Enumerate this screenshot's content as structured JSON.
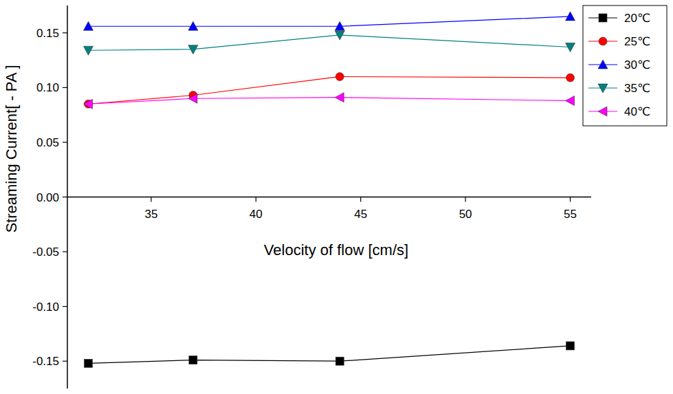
{
  "chart_data": {
    "type": "line",
    "x_label": "Velocity of flow [cm/s]",
    "y_label": "Streaming Current[ - PA ]",
    "x": [
      32,
      37,
      44,
      55
    ],
    "series": [
      {
        "name": "20℃",
        "color": "#000000",
        "marker": "square",
        "values": [
          -0.152,
          -0.149,
          -0.15,
          -0.136
        ]
      },
      {
        "name": "25℃",
        "color": "#ff0000",
        "marker": "circle",
        "values": [
          0.085,
          0.093,
          0.11,
          0.109
        ]
      },
      {
        "name": "30℃",
        "color": "#0000ff",
        "marker": "triangle-up",
        "values": [
          0.156,
          0.156,
          0.156,
          0.165
        ]
      },
      {
        "name": "35℃",
        "color": "#008080",
        "marker": "triangle-down",
        "values": [
          0.134,
          0.135,
          0.148,
          0.137
        ]
      },
      {
        "name": "40℃",
        "color": "#ff00ff",
        "marker": "triangle-left",
        "values": [
          0.085,
          0.09,
          0.091,
          0.088
        ]
      }
    ],
    "xlim": [
      31,
      56
    ],
    "xticks": [
      35,
      40,
      45,
      50,
      55
    ],
    "ylim": [
      -0.175,
      0.175
    ],
    "yticks": [
      {
        "value": -0.15,
        "label": "-0.15"
      },
      {
        "value": -0.1,
        "label": "-0.10"
      },
      {
        "value": -0.05,
        "label": "-0.05"
      },
      {
        "value": 0,
        "label": "0.00"
      },
      {
        "value": 0.05,
        "label": "0.05"
      },
      {
        "value": 0.1,
        "label": "0.10"
      },
      {
        "value": 0.15,
        "label": "0.15"
      }
    ],
    "grid": false,
    "legend": "top-right"
  }
}
